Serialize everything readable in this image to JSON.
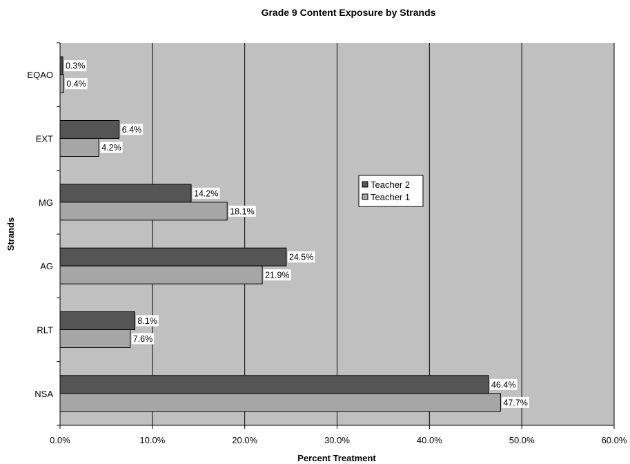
{
  "chart_data": {
    "type": "bar",
    "orientation": "horizontal",
    "title": "Grade 9 Content Exposure by Strands",
    "xlabel": "Percent Treatment",
    "ylabel": "Strands",
    "categories": [
      "EQAO",
      "EXT",
      "MG",
      "AG",
      "RLT",
      "NSA"
    ],
    "series": [
      {
        "name": "Teacher 2",
        "color": "#555555",
        "values": [
          0.3,
          6.4,
          14.2,
          24.5,
          8.1,
          46.4
        ]
      },
      {
        "name": "Teacher 1",
        "color": "#a6a6a6",
        "values": [
          0.4,
          4.2,
          18.1,
          21.9,
          7.6,
          47.7
        ]
      }
    ],
    "xlim": [
      0,
      60
    ],
    "xticks": [
      0,
      10,
      20,
      30,
      40,
      50,
      60
    ],
    "xtick_labels": [
      "0.0%",
      "10.0%",
      "20.0%",
      "30.0%",
      "40.0%",
      "50.0%",
      "60.0%"
    ],
    "data_labels": [
      [
        "0.3%",
        "6.4%",
        "14.2%",
        "24.5%",
        "8.1%",
        "46.4%"
      ],
      [
        "0.4%",
        "4.2%",
        "18.1%",
        "21.9%",
        "7.6%",
        "47.7%"
      ]
    ],
    "grid": "vertical",
    "plot_background": "#c0c0c0",
    "legend_position": "center-right"
  }
}
